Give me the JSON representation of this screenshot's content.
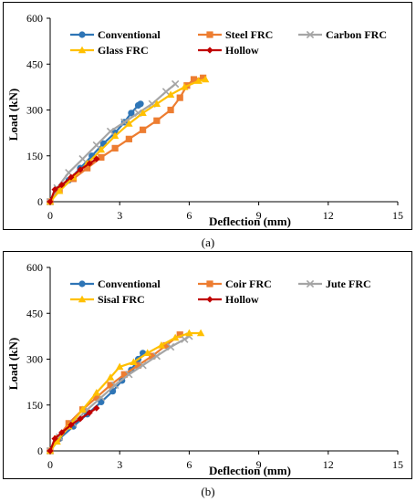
{
  "figure": {
    "captions": [
      "(a)",
      "(b)"
    ]
  },
  "chart_data": [
    {
      "type": "line",
      "xlabel": "Deflection (mm)",
      "ylabel": "Load (kN)",
      "xlim": [
        0,
        15
      ],
      "ylim": [
        0,
        600
      ],
      "xticks": [
        0,
        3,
        6,
        9,
        12,
        15
      ],
      "yticks": [
        0,
        150,
        300,
        450,
        600
      ],
      "legend_position": "top",
      "series": [
        {
          "name": "Conventional",
          "color": "#2E75B6",
          "marker": "circle",
          "x": [
            0,
            0.3,
            0.8,
            1.3,
            1.8,
            2.3,
            2.8,
            3.2,
            3.5,
            3.8,
            3.9
          ],
          "y": [
            0,
            40,
            70,
            110,
            150,
            190,
            225,
            260,
            290,
            315,
            320
          ]
        },
        {
          "name": "Steel FRC",
          "color": "#ED7D31",
          "marker": "square",
          "x": [
            0,
            0.4,
            1.0,
            1.6,
            2.2,
            2.8,
            3.4,
            4.0,
            4.6,
            5.2,
            5.6,
            5.9,
            6.2,
            6.6
          ],
          "y": [
            0,
            40,
            75,
            110,
            145,
            175,
            205,
            235,
            265,
            300,
            340,
            380,
            400,
            405
          ]
        },
        {
          "name": "Carbon FRC",
          "color": "#A5A5A5",
          "marker": "x",
          "x": [
            0,
            0.3,
            0.8,
            1.4,
            2.0,
            2.6,
            3.2,
            3.8,
            4.4,
            5.0,
            5.4
          ],
          "y": [
            0,
            45,
            95,
            140,
            185,
            230,
            260,
            290,
            320,
            360,
            385
          ]
        },
        {
          "name": "Glass FRC",
          "color": "#FFC000",
          "marker": "triangle",
          "x": [
            0,
            0.4,
            1.0,
            1.6,
            2.2,
            2.8,
            3.4,
            4.0,
            4.6,
            5.2,
            5.8,
            6.4,
            6.7
          ],
          "y": [
            0,
            35,
            80,
            125,
            170,
            215,
            255,
            290,
            320,
            350,
            375,
            395,
            400
          ]
        },
        {
          "name": "Hollow",
          "color": "#C00000",
          "marker": "diamond",
          "x": [
            0,
            0.2,
            0.5,
            0.9,
            1.3,
            1.7,
            2.0
          ],
          "y": [
            0,
            40,
            55,
            80,
            105,
            125,
            140
          ]
        }
      ]
    },
    {
      "type": "line",
      "xlabel": "Deflection (mm)",
      "ylabel": "Load (kN)",
      "xlim": [
        0,
        15
      ],
      "ylim": [
        0,
        600
      ],
      "xticks": [
        0,
        3,
        6,
        9,
        12,
        15
      ],
      "yticks": [
        0,
        150,
        300,
        450,
        600
      ],
      "legend_position": "top",
      "series": [
        {
          "name": "Conventional",
          "color": "#2E75B6",
          "marker": "circle",
          "x": [
            0,
            0.4,
            1.0,
            1.6,
            2.2,
            2.7,
            3.1,
            3.5,
            3.8,
            4.0
          ],
          "y": [
            0,
            40,
            80,
            120,
            160,
            195,
            230,
            265,
            300,
            320
          ]
        },
        {
          "name": "Coir FRC",
          "color": "#ED7D31",
          "marker": "square",
          "x": [
            0,
            0.3,
            0.8,
            1.4,
            2.0,
            2.6,
            3.2,
            3.8,
            4.4,
            5.0,
            5.6
          ],
          "y": [
            0,
            40,
            90,
            135,
            175,
            215,
            250,
            280,
            310,
            345,
            380
          ]
        },
        {
          "name": "Jute FRC",
          "color": "#A5A5A5",
          "marker": "x",
          "x": [
            0,
            0.4,
            1.0,
            1.6,
            2.2,
            2.8,
            3.4,
            4.0,
            4.6,
            5.2,
            5.8,
            6.0
          ],
          "y": [
            0,
            45,
            90,
            135,
            175,
            215,
            250,
            280,
            310,
            340,
            365,
            375
          ]
        },
        {
          "name": "Sisal FRC",
          "color": "#FFC000",
          "marker": "triangle",
          "x": [
            0,
            0.3,
            0.8,
            1.4,
            2.0,
            2.6,
            3.0,
            3.6,
            4.2,
            4.8,
            5.4,
            6.0,
            6.5
          ],
          "y": [
            0,
            30,
            80,
            135,
            190,
            240,
            275,
            290,
            320,
            345,
            370,
            385,
            385
          ]
        },
        {
          "name": "Hollow",
          "color": "#C00000",
          "marker": "diamond",
          "x": [
            0,
            0.2,
            0.5,
            0.9,
            1.3,
            1.7,
            2.0
          ],
          "y": [
            0,
            40,
            60,
            85,
            105,
            125,
            140
          ]
        }
      ]
    }
  ]
}
